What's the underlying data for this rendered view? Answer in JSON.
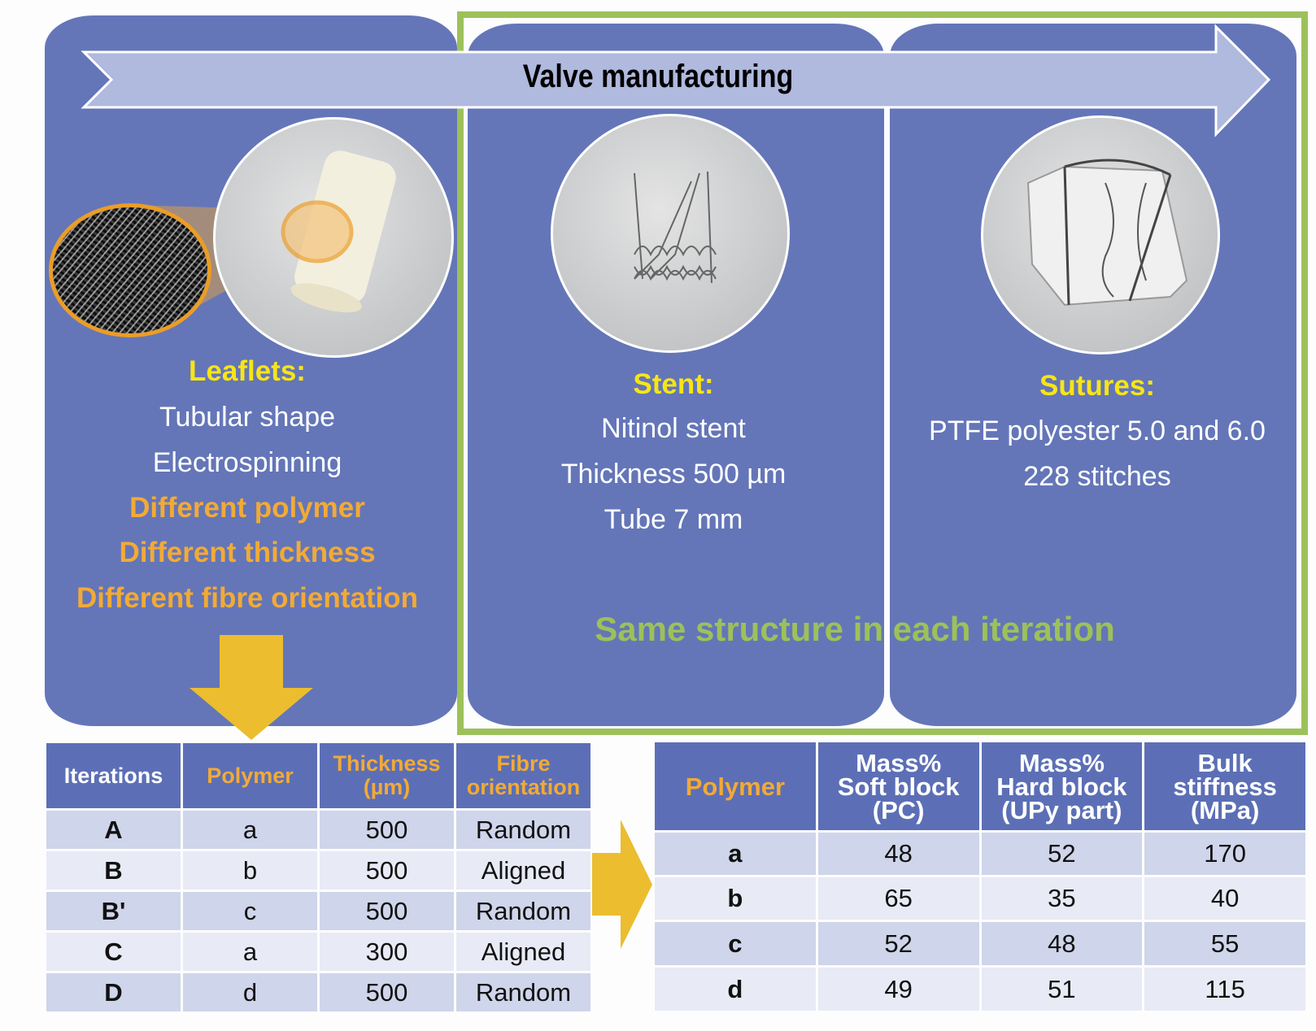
{
  "banner": {
    "title": "Valve manufacturing"
  },
  "leaflets": {
    "heading": "Leaflets:",
    "lines": [
      "Tubular shape",
      "Electrospinning"
    ],
    "variable_lines": [
      "Different polymer",
      "Different thickness",
      "Different fibre orientation"
    ]
  },
  "stent": {
    "heading": "Stent:",
    "lines": [
      "Nitinol stent",
      "Thickness 500 µm",
      "Tube 7 mm"
    ]
  },
  "sutures": {
    "heading": "Sutures:",
    "lines": [
      "PTFE polyester 5.0 and 6.0",
      "228 stitches"
    ]
  },
  "same_structure": "Same structure in each iteration",
  "iterations_table": {
    "headers": [
      "Iterations",
      "Polymer",
      "Thickness (µm)",
      "Fibre orientation"
    ],
    "rows": [
      [
        "A",
        "a",
        "500",
        "Random"
      ],
      [
        "B",
        "b",
        "500",
        "Aligned"
      ],
      [
        "B'",
        "c",
        "500",
        "Random"
      ],
      [
        "C",
        "a",
        "300",
        "Aligned"
      ],
      [
        "D",
        "d",
        "500",
        "Random"
      ]
    ]
  },
  "polymer_table": {
    "headers": [
      "Polymer",
      "Mass% Soft block (PC)",
      "Mass% Hard block (UPy part)",
      "Bulk stiffness (MPa)"
    ],
    "rows": [
      [
        "a",
        "48",
        "52",
        "170"
      ],
      [
        "b",
        "65",
        "35",
        "40"
      ],
      [
        "c",
        "52",
        "48",
        "55"
      ],
      [
        "d",
        "49",
        "51",
        "115"
      ]
    ]
  },
  "colors": {
    "panel": "#6476b8",
    "green": "#9dc15a",
    "yellow": "#f7e516",
    "orange": "#f2aa36",
    "arrow": "#ebbd2f"
  }
}
